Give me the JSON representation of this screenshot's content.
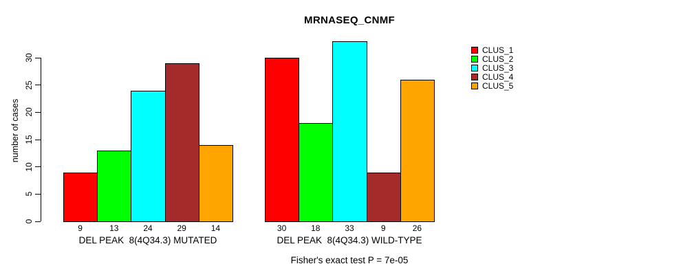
{
  "chart_data": {
    "type": "bar",
    "title": "MRNASEQ_CNMF",
    "ylabel": "number of cases",
    "xlabel": "",
    "yticks": [
      0,
      5,
      10,
      15,
      20,
      25,
      30
    ],
    "ylim": [
      0,
      33
    ],
    "grid": false,
    "legend_position": "right",
    "categories": [
      "DEL PEAK  8(4Q34.3) MUTATED",
      "DEL PEAK  8(4Q34.3) WILD-TYPE"
    ],
    "series": [
      {
        "name": "CLUS_1",
        "color": "#FF0000",
        "values": [
          9,
          30
        ]
      },
      {
        "name": "CLUS_2",
        "color": "#00FF00",
        "values": [
          13,
          18
        ]
      },
      {
        "name": "CLUS_3",
        "color": "#00FFFF",
        "values": [
          24,
          33
        ]
      },
      {
        "name": "CLUS_4",
        "color": "#A52A2A",
        "values": [
          29,
          9
        ]
      },
      {
        "name": "CLUS_5",
        "color": "#FFA500",
        "values": [
          14,
          26
        ]
      }
    ],
    "bar_value_labels_shown": true,
    "annotation": "Fisher's exact test P = 7e-05",
    "axis_color": "#000000",
    "background_color": "#FFFFFF"
  }
}
